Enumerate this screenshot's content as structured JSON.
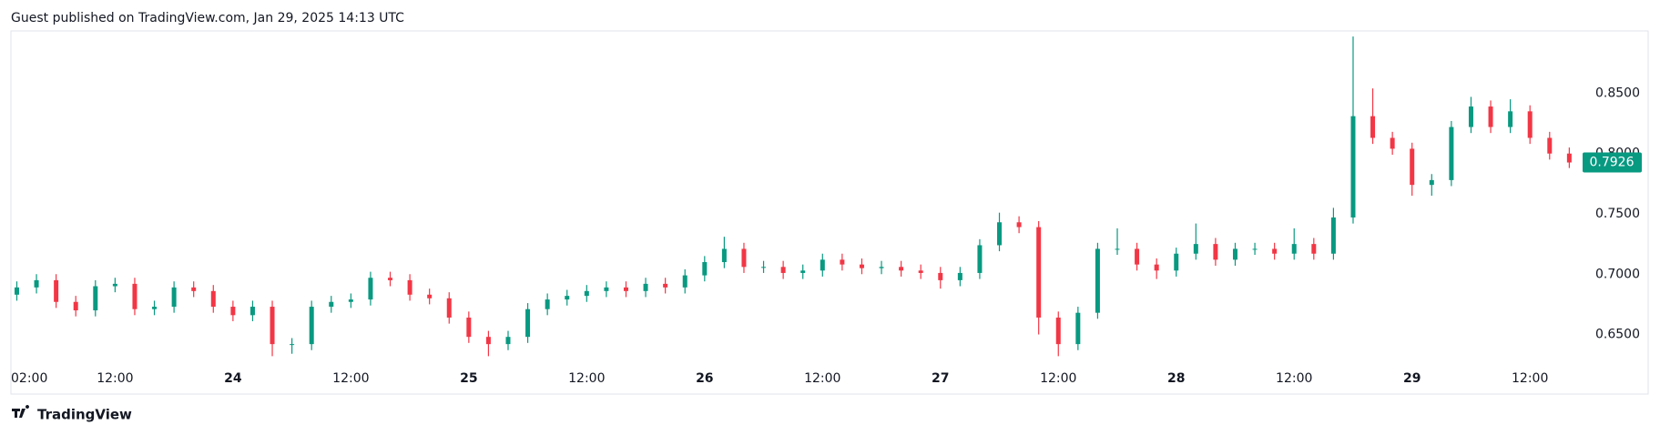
{
  "chart_data": {
    "type": "candlestick",
    "title": "Guest published on TradingView.com, Jan 29, 2025 14:13 UTC",
    "source": "TradingView",
    "up_color": "#089981",
    "down_color": "#f23645",
    "last_price_color": "#089981",
    "grid": false,
    "open": [
      0.683,
      0.689,
      0.695,
      0.677,
      0.67,
      0.69,
      0.692,
      0.671,
      0.673,
      0.689,
      0.686,
      0.673,
      0.666,
      0.673,
      0.642,
      0.642,
      0.673,
      0.677,
      0.679,
      0.697,
      0.695,
      0.683,
      0.68,
      0.664,
      0.648,
      0.642,
      0.648,
      0.671,
      0.679,
      0.682,
      0.686,
      0.689,
      0.686,
      0.692,
      0.689,
      0.699,
      0.71,
      0.721,
      0.706,
      0.706,
      0.701,
      0.703,
      0.712,
      0.708,
      0.705,
      0.706,
      0.703,
      0.701,
      0.695,
      0.701,
      0.724,
      0.743,
      0.739,
      0.664,
      0.642,
      0.668,
      0.721,
      0.721,
      0.708,
      0.703,
      0.717,
      0.725,
      0.712,
      0.721,
      0.721,
      0.717,
      0.725,
      0.717,
      0.747,
      0.831,
      0.813,
      0.804,
      0.774,
      0.778,
      0.822,
      0.839,
      0.822,
      0.835,
      0.813,
      0.8
    ],
    "high": [
      0.694,
      0.7,
      0.7,
      0.682,
      0.695,
      0.697,
      0.697,
      0.678,
      0.694,
      0.694,
      0.691,
      0.678,
      0.678,
      0.678,
      0.647,
      0.678,
      0.682,
      0.684,
      0.702,
      0.702,
      0.7,
      0.688,
      0.685,
      0.669,
      0.653,
      0.653,
      0.676,
      0.684,
      0.687,
      0.691,
      0.694,
      0.694,
      0.697,
      0.697,
      0.704,
      0.715,
      0.731,
      0.726,
      0.711,
      0.711,
      0.708,
      0.717,
      0.717,
      0.713,
      0.711,
      0.711,
      0.708,
      0.706,
      0.706,
      0.729,
      0.751,
      0.748,
      0.744,
      0.669,
      0.673,
      0.726,
      0.738,
      0.726,
      0.713,
      0.722,
      0.742,
      0.73,
      0.726,
      0.726,
      0.726,
      0.738,
      0.73,
      0.755,
      0.897,
      0.854,
      0.818,
      0.809,
      0.783,
      0.827,
      0.847,
      0.844,
      0.845,
      0.84,
      0.818,
      0.805
    ],
    "low": [
      0.678,
      0.684,
      0.672,
      0.665,
      0.665,
      0.685,
      0.666,
      0.666,
      0.668,
      0.681,
      0.668,
      0.661,
      0.661,
      0.632,
      0.634,
      0.637,
      0.668,
      0.672,
      0.674,
      0.69,
      0.678,
      0.675,
      0.659,
      0.643,
      0.632,
      0.637,
      0.643,
      0.666,
      0.674,
      0.677,
      0.681,
      0.681,
      0.681,
      0.684,
      0.684,
      0.694,
      0.705,
      0.701,
      0.701,
      0.696,
      0.696,
      0.698,
      0.703,
      0.7,
      0.7,
      0.698,
      0.696,
      0.688,
      0.69,
      0.696,
      0.719,
      0.734,
      0.65,
      0.632,
      0.637,
      0.663,
      0.716,
      0.703,
      0.696,
      0.698,
      0.712,
      0.707,
      0.707,
      0.716,
      0.712,
      0.712,
      0.712,
      0.712,
      0.742,
      0.808,
      0.799,
      0.765,
      0.765,
      0.773,
      0.817,
      0.817,
      0.817,
      0.808,
      0.795,
      0.788
    ],
    "close": [
      0.689,
      0.695,
      0.677,
      0.67,
      0.69,
      0.692,
      0.671,
      0.673,
      0.689,
      0.686,
      0.673,
      0.666,
      0.673,
      0.642,
      0.642,
      0.673,
      0.677,
      0.679,
      0.697,
      0.695,
      0.683,
      0.68,
      0.664,
      0.648,
      0.642,
      0.648,
      0.671,
      0.679,
      0.682,
      0.686,
      0.689,
      0.686,
      0.692,
      0.689,
      0.699,
      0.71,
      0.721,
      0.706,
      0.706,
      0.701,
      0.703,
      0.712,
      0.708,
      0.705,
      0.706,
      0.703,
      0.701,
      0.695,
      0.701,
      0.724,
      0.743,
      0.739,
      0.664,
      0.642,
      0.668,
      0.721,
      0.721,
      0.708,
      0.703,
      0.717,
      0.725,
      0.712,
      0.721,
      0.721,
      0.717,
      0.725,
      0.717,
      0.747,
      0.831,
      0.813,
      0.804,
      0.774,
      0.778,
      0.822,
      0.839,
      0.822,
      0.835,
      0.813,
      0.8,
      0.7926
    ],
    "xlim": [
      -0.3,
      79.4
    ],
    "xticks": [
      {
        "value": 0,
        "label": "02:00"
      },
      {
        "value": 5,
        "label": "12:00"
      },
      {
        "value": 11,
        "label": "24"
      },
      {
        "value": 17,
        "label": "12:00"
      },
      {
        "value": 23,
        "label": "25"
      },
      {
        "value": 29,
        "label": "12:00"
      },
      {
        "value": 35,
        "label": "26"
      },
      {
        "value": 41,
        "label": "12:00"
      },
      {
        "value": 47,
        "label": "27"
      },
      {
        "value": 53,
        "label": "12:00"
      },
      {
        "value": 59,
        "label": "28"
      },
      {
        "value": 65,
        "label": "12:00"
      },
      {
        "value": 71,
        "label": "29"
      },
      {
        "value": 77,
        "label": "12:00"
      }
    ],
    "ylim": [
      0.6255,
      0.9009
    ],
    "yticks": [
      {
        "value": 0.65,
        "label": "0.6500"
      },
      {
        "value": 0.7,
        "label": "0.7000"
      },
      {
        "value": 0.75,
        "label": "0.7500"
      },
      {
        "value": 0.8,
        "label": "0.8000"
      },
      {
        "value": 0.85,
        "label": "0.8500"
      }
    ]
  }
}
